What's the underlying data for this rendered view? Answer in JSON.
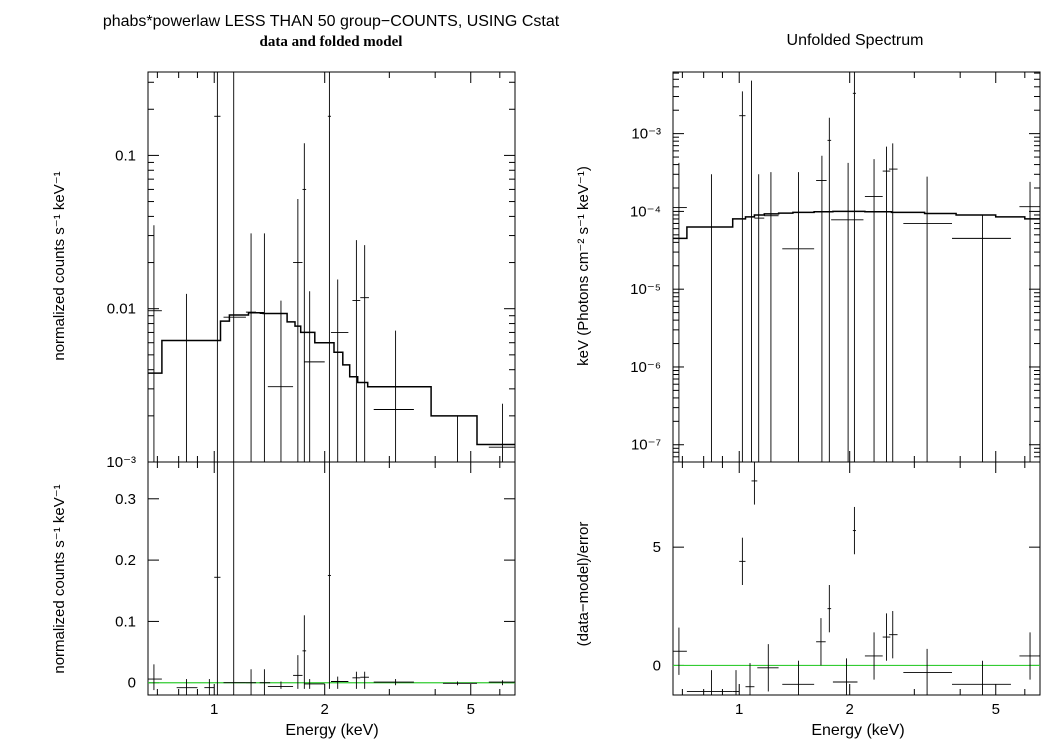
{
  "titles": {
    "left_line1": "phabs*powerlaw LESS THAN 50 group−COUNTS, USING Cstat",
    "left_line2": "data and folded model",
    "right": "Unfolded Spectrum"
  },
  "labels": {
    "xlabel": "Energy (keV)",
    "ylabel_counts": "normalized counts s⁻¹ keV⁻¹",
    "ylabel_unfolded": "keV (Photons cm⁻² s⁻¹ keV⁻¹)",
    "ylabel_residual": "(data−model)/error"
  },
  "colors": {
    "data": "#000000",
    "model": "#000000",
    "zero_line": "#33cc33",
    "frame": "#000000"
  },
  "chart_data": [
    {
      "type": "scatter",
      "title": "data and folded model",
      "xlabel": "",
      "ylabel": "normalized counts s⁻¹ keV⁻¹",
      "xscale": "log",
      "yscale": "log",
      "xlim": [
        0.66,
        6.6
      ],
      "ylim": [
        0.001,
        0.35
      ],
      "xticks": [
        1,
        2,
        5
      ],
      "xtick_labels": [
        "",
        "",
        ""
      ],
      "yticks": [
        0.001,
        0.01,
        0.1
      ],
      "ytick_labels": [
        "10⁻³",
        "0.01",
        "0.1"
      ],
      "data": [
        {
          "x": 0.685,
          "xlo": 0.66,
          "xhi": 0.72,
          "y": 0.0097,
          "ylo": 0.001,
          "yhi": 0.035
        },
        {
          "x": 0.84,
          "xlo": 0.79,
          "xhi": 0.9,
          "y": 0.0009,
          "ylo": 0.0009,
          "yhi": 0.0125
        },
        {
          "x": 1.02,
          "xlo": 1.0,
          "xhi": 1.04,
          "y": 0.18,
          "ylo": 0.001,
          "yhi": 0.35
        },
        {
          "x": 1.13,
          "xlo": 1.06,
          "xhi": 1.22,
          "y": 0.0088,
          "ylo": 0.001,
          "yhi": 0.35
        },
        {
          "x": 1.26,
          "xlo": 1.22,
          "xhi": 1.3,
          "y": 0.0095,
          "ylo": 0.001,
          "yhi": 0.031
        },
        {
          "x": 1.37,
          "xlo": 1.33,
          "xhi": 1.42,
          "y": 0.0093,
          "ylo": 0.001,
          "yhi": 0.031
        },
        {
          "x": 1.52,
          "xlo": 1.4,
          "xhi": 1.64,
          "y": 0.0031,
          "ylo": 0.001,
          "yhi": 0.0113
        },
        {
          "x": 1.69,
          "xlo": 1.64,
          "xhi": 1.74,
          "y": 0.02,
          "ylo": 0.001,
          "yhi": 0.052
        },
        {
          "x": 1.76,
          "xlo": 1.74,
          "xhi": 1.78,
          "y": 0.06,
          "ylo": 0.001,
          "yhi": 0.12
        },
        {
          "x": 1.82,
          "xlo": 1.76,
          "xhi": 2.0,
          "y": 0.0045,
          "ylo": 0.001,
          "yhi": 0.013
        },
        {
          "x": 2.06,
          "xlo": 2.04,
          "xhi": 2.08,
          "y": 0.18,
          "ylo": 0.001,
          "yhi": 0.35
        },
        {
          "x": 2.17,
          "xlo": 2.08,
          "xhi": 2.32,
          "y": 0.007,
          "ylo": 0.001,
          "yhi": 0.0155
        },
        {
          "x": 2.44,
          "xlo": 2.38,
          "xhi": 2.5,
          "y": 0.0113,
          "ylo": 0.001,
          "yhi": 0.028
        },
        {
          "x": 2.57,
          "xlo": 2.5,
          "xhi": 2.64,
          "y": 0.0118,
          "ylo": 0.001,
          "yhi": 0.026
        },
        {
          "x": 3.12,
          "xlo": 2.72,
          "xhi": 3.5,
          "y": 0.0022,
          "ylo": 0.001,
          "yhi": 0.0072
        },
        {
          "x": 4.6,
          "xlo": 4.2,
          "xhi": 5.2,
          "y": 0.0009,
          "ylo": 0.0009,
          "yhi": 0.002
        },
        {
          "x": 6.1,
          "xlo": 5.6,
          "xhi": 6.6,
          "y": 0.00125,
          "ylo": 0.001,
          "yhi": 0.0024
        }
      ],
      "model_step": {
        "edges": [
          0.66,
          0.72,
          0.94,
          1.04,
          1.1,
          1.24,
          1.36,
          1.58,
          1.66,
          1.72,
          1.88,
          2.12,
          2.24,
          2.34,
          2.46,
          2.62,
          3.9,
          5.2,
          6.6
        ],
        "values": [
          0.0038,
          0.0062,
          0.0062,
          0.0083,
          0.0091,
          0.0094,
          0.0093,
          0.0082,
          0.0077,
          0.007,
          0.006,
          0.0052,
          0.0043,
          0.0036,
          0.0033,
          0.0031,
          0.002,
          0.0013
        ]
      }
    },
    {
      "type": "scatter",
      "title": "",
      "xlabel": "Energy (keV)",
      "ylabel": "normalized counts s⁻¹ keV⁻¹",
      "xscale": "log",
      "yscale": "linear",
      "xlim": [
        0.66,
        6.6
      ],
      "ylim": [
        -0.02,
        0.36
      ],
      "xticks": [
        1,
        2,
        5
      ],
      "xtick_labels": [
        "1",
        "2",
        "5"
      ],
      "yticks": [
        0,
        0.1,
        0.2,
        0.3
      ],
      "ytick_labels": [
        "0",
        "0.1",
        "0.2",
        "0.3"
      ],
      "zero_line": 0,
      "data": [
        {
          "x": 0.685,
          "xlo": 0.66,
          "xhi": 0.72,
          "y": 0.006,
          "ylo": -0.012,
          "yhi": 0.03
        },
        {
          "x": 0.84,
          "xlo": 0.79,
          "xhi": 0.9,
          "y": -0.008,
          "ylo": -0.02,
          "yhi": 0.006
        },
        {
          "x": 0.97,
          "xlo": 0.94,
          "xhi": 1.0,
          "y": -0.008,
          "ylo": -0.02,
          "yhi": 0.006
        },
        {
          "x": 1.02,
          "xlo": 1.0,
          "xhi": 1.04,
          "y": 0.172,
          "ylo": -0.02,
          "yhi": 0.36
        },
        {
          "x": 1.13,
          "xlo": 1.06,
          "xhi": 1.22,
          "y": 0.0,
          "ylo": -0.02,
          "yhi": 0.36
        },
        {
          "x": 1.26,
          "xlo": 1.22,
          "xhi": 1.3,
          "y": 0.0,
          "ylo": -0.02,
          "yhi": 0.022
        },
        {
          "x": 1.37,
          "xlo": 1.33,
          "xhi": 1.42,
          "y": 0.0,
          "ylo": -0.02,
          "yhi": 0.022
        },
        {
          "x": 1.52,
          "xlo": 1.4,
          "xhi": 1.64,
          "y": -0.006,
          "ylo": -0.01,
          "yhi": 0.002
        },
        {
          "x": 1.69,
          "xlo": 1.64,
          "xhi": 1.74,
          "y": 0.012,
          "ylo": -0.01,
          "yhi": 0.045
        },
        {
          "x": 1.76,
          "xlo": 1.74,
          "xhi": 1.78,
          "y": 0.052,
          "ylo": -0.01,
          "yhi": 0.11
        },
        {
          "x": 1.82,
          "xlo": 1.76,
          "xhi": 2.0,
          "y": -0.002,
          "ylo": -0.01,
          "yhi": 0.006
        },
        {
          "x": 2.06,
          "xlo": 2.04,
          "xhi": 2.08,
          "y": 0.175,
          "ylo": -0.01,
          "yhi": 0.36
        },
        {
          "x": 2.17,
          "xlo": 2.08,
          "xhi": 2.32,
          "y": 0.002,
          "ylo": -0.01,
          "yhi": 0.01
        },
        {
          "x": 2.44,
          "xlo": 2.38,
          "xhi": 2.5,
          "y": 0.008,
          "ylo": -0.01,
          "yhi": 0.018
        },
        {
          "x": 2.57,
          "xlo": 2.5,
          "xhi": 2.64,
          "y": 0.009,
          "ylo": -0.01,
          "yhi": 0.018
        },
        {
          "x": 3.12,
          "xlo": 2.72,
          "xhi": 3.5,
          "y": 0.001,
          "ylo": -0.004,
          "yhi": 0.006
        },
        {
          "x": 4.6,
          "xlo": 4.2,
          "xhi": 5.2,
          "y": -0.001,
          "ylo": -0.004,
          "yhi": 0.002
        },
        {
          "x": 6.1,
          "xlo": 5.6,
          "xhi": 6.6,
          "y": 0.001,
          "ylo": -0.004,
          "yhi": 0.004
        }
      ]
    },
    {
      "type": "scatter",
      "title": "Unfolded Spectrum",
      "xlabel": "",
      "ylabel": "keV (Photons cm⁻² s⁻¹ keV⁻¹)",
      "xscale": "log",
      "yscale": "log",
      "xlim": [
        0.66,
        6.6
      ],
      "ylim": [
        6e-08,
        0.0062
      ],
      "xticks": [
        1,
        2,
        5
      ],
      "xtick_labels": [
        "",
        "",
        ""
      ],
      "yticks": [
        1e-07,
        1e-06,
        1e-05,
        0.0001,
        0.001
      ],
      "ytick_labels": [
        "10⁻⁷",
        "10⁻⁶",
        "10⁻⁵",
        "10⁻⁴",
        "10⁻³"
      ],
      "data": [
        {
          "x": 0.685,
          "xlo": 0.66,
          "xhi": 0.72,
          "y": 0.000112,
          "ylo": 6e-08,
          "yhi": 0.00042
        },
        {
          "x": 0.84,
          "xlo": 0.72,
          "xhi": 0.96,
          "y": 6.3e-05,
          "ylo": 6e-08,
          "yhi": 0.0003
        },
        {
          "x": 1.02,
          "xlo": 1.0,
          "xhi": 1.04,
          "y": 0.0017,
          "ylo": 6e-08,
          "yhi": 0.0035
        },
        {
          "x": 1.08,
          "xlo": 1.06,
          "xhi": 1.1,
          "y": 8.5e-05,
          "ylo": 6e-08,
          "yhi": 0.0048
        },
        {
          "x": 1.13,
          "xlo": 1.1,
          "xhi": 1.17,
          "y": 8.2e-05,
          "ylo": 6e-08,
          "yhi": 0.0003
        },
        {
          "x": 1.22,
          "xlo": 1.17,
          "xhi": 1.28,
          "y": 8.8e-05,
          "ylo": 6e-08,
          "yhi": 0.00032
        },
        {
          "x": 1.45,
          "xlo": 1.31,
          "xhi": 1.6,
          "y": 3.3e-05,
          "ylo": 6e-08,
          "yhi": 0.00032
        },
        {
          "x": 1.68,
          "xlo": 1.62,
          "xhi": 1.73,
          "y": 0.00025,
          "ylo": 6e-08,
          "yhi": 0.00052
        },
        {
          "x": 1.76,
          "xlo": 1.74,
          "xhi": 1.78,
          "y": 0.00082,
          "ylo": 6e-08,
          "yhi": 0.0016
        },
        {
          "x": 1.98,
          "xlo": 1.78,
          "xhi": 2.18,
          "y": 7.8e-05,
          "ylo": 6e-08,
          "yhi": 0.00042
        },
        {
          "x": 2.06,
          "xlo": 2.04,
          "xhi": 2.08,
          "y": 0.0033,
          "ylo": 6e-08,
          "yhi": 0.0062
        },
        {
          "x": 2.33,
          "xlo": 2.2,
          "xhi": 2.46,
          "y": 0.000155,
          "ylo": 6e-08,
          "yhi": 0.00047
        },
        {
          "x": 2.52,
          "xlo": 2.46,
          "xhi": 2.58,
          "y": 0.00033,
          "ylo": 6e-08,
          "yhi": 0.00068
        },
        {
          "x": 2.62,
          "xlo": 2.56,
          "xhi": 2.7,
          "y": 0.00035,
          "ylo": 6e-08,
          "yhi": 0.00075
        },
        {
          "x": 3.25,
          "xlo": 2.8,
          "xhi": 3.8,
          "y": 7e-05,
          "ylo": 6e-08,
          "yhi": 0.00028
        },
        {
          "x": 4.6,
          "xlo": 3.8,
          "xhi": 5.5,
          "y": 4.5e-05,
          "ylo": 6e-08,
          "yhi": 9e-05
        },
        {
          "x": 6.2,
          "xlo": 5.8,
          "xhi": 6.6,
          "y": 0.000115,
          "ylo": 6e-08,
          "yhi": 0.00024
        }
      ],
      "model_step": {
        "edges": [
          0.66,
          0.72,
          0.96,
          1.04,
          1.1,
          1.17,
          1.28,
          1.4,
          1.6,
          1.8,
          2.2,
          2.6,
          3.2,
          3.9,
          5.0,
          6.0,
          6.6
        ],
        "values": [
          4.5e-05,
          6.3e-05,
          8e-05,
          8.5e-05,
          9e-05,
          9.3e-05,
          9.5e-05,
          9.7e-05,
          9.9e-05,
          0.0001,
          9.9e-05,
          9.7e-05,
          9.4e-05,
          9e-05,
          8.5e-05,
          8e-05
        ]
      }
    },
    {
      "type": "scatter",
      "title": "",
      "xlabel": "Energy (keV)",
      "ylabel": "(data−model)/error",
      "xscale": "log",
      "yscale": "linear",
      "xlim": [
        0.66,
        6.6
      ],
      "ylim": [
        -1.25,
        8.6
      ],
      "xticks": [
        1,
        2,
        5
      ],
      "xtick_labels": [
        "1",
        "2",
        "5"
      ],
      "yticks": [
        0,
        5
      ],
      "ytick_labels": [
        "0",
        "5"
      ],
      "zero_line": 0,
      "data": [
        {
          "x": 0.685,
          "xlo": 0.66,
          "xhi": 0.72,
          "y": 0.6,
          "ylo": -0.4,
          "yhi": 1.6
        },
        {
          "x": 0.84,
          "xlo": 0.72,
          "xhi": 0.96,
          "y": -1.1,
          "ylo": -1.25,
          "yhi": -0.2
        },
        {
          "x": 0.98,
          "xlo": 0.96,
          "xhi": 1.0,
          "y": -1.1,
          "ylo": -1.25,
          "yhi": -0.2
        },
        {
          "x": 1.02,
          "xlo": 1.0,
          "xhi": 1.04,
          "y": 4.4,
          "ylo": 3.4,
          "yhi": 5.4
        },
        {
          "x": 1.07,
          "xlo": 1.04,
          "xhi": 1.1,
          "y": -0.9,
          "ylo": -1.25,
          "yhi": 0.1
        },
        {
          "x": 1.1,
          "xlo": 1.08,
          "xhi": 1.12,
          "y": 7.8,
          "ylo": 6.8,
          "yhi": 8.6
        },
        {
          "x": 1.2,
          "xlo": 1.12,
          "xhi": 1.28,
          "y": -0.1,
          "ylo": -1.1,
          "yhi": 0.9
        },
        {
          "x": 1.45,
          "xlo": 1.31,
          "xhi": 1.6,
          "y": -0.8,
          "ylo": -1.25,
          "yhi": 0.2
        },
        {
          "x": 1.67,
          "xlo": 1.62,
          "xhi": 1.72,
          "y": 1.0,
          "ylo": 0.0,
          "yhi": 2.0
        },
        {
          "x": 1.76,
          "xlo": 1.74,
          "xhi": 1.78,
          "y": 2.4,
          "ylo": 1.4,
          "yhi": 3.4
        },
        {
          "x": 1.96,
          "xlo": 1.8,
          "xhi": 2.1,
          "y": -0.7,
          "ylo": -1.25,
          "yhi": 0.3
        },
        {
          "x": 2.06,
          "xlo": 2.04,
          "xhi": 2.08,
          "y": 5.7,
          "ylo": 4.7,
          "yhi": 6.7
        },
        {
          "x": 2.33,
          "xlo": 2.2,
          "xhi": 2.46,
          "y": 0.4,
          "ylo": -0.6,
          "yhi": 1.4
        },
        {
          "x": 2.52,
          "xlo": 2.46,
          "xhi": 2.58,
          "y": 1.2,
          "ylo": 0.2,
          "yhi": 2.2
        },
        {
          "x": 2.62,
          "xlo": 2.56,
          "xhi": 2.7,
          "y": 1.3,
          "ylo": 0.3,
          "yhi": 2.3
        },
        {
          "x": 3.25,
          "xlo": 2.8,
          "xhi": 3.8,
          "y": -0.3,
          "ylo": -1.25,
          "yhi": 0.7
        },
        {
          "x": 4.6,
          "xlo": 3.8,
          "xhi": 5.5,
          "y": -0.8,
          "ylo": -1.25,
          "yhi": 0.2
        },
        {
          "x": 6.2,
          "xlo": 5.8,
          "xhi": 6.6,
          "y": 0.4,
          "ylo": -0.6,
          "yhi": 1.4
        }
      ]
    }
  ]
}
